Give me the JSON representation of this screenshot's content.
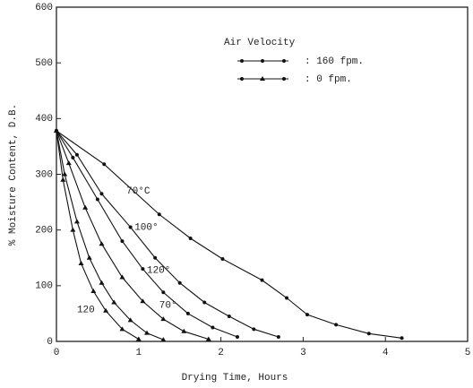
{
  "chart_data": {
    "type": "line",
    "xlabel": "Drying Time, Hours",
    "ylabel": "% Moisture Content, D.B.",
    "xlim": [
      0,
      5
    ],
    "xticks": [
      0,
      1,
      2,
      3,
      4,
      5
    ],
    "ylim": [
      0,
      600
    ],
    "yticks": [
      0,
      100,
      200,
      300,
      400,
      500,
      600
    ],
    "legend": {
      "title": "Air Velocity",
      "position": "upper right",
      "entries": [
        {
          "label": ": 160 fpm.",
          "marker": "circle"
        },
        {
          "label": ":  0 fpm.",
          "marker": "triangle"
        }
      ]
    },
    "series": [
      {
        "label": "70°C",
        "marker": "circle",
        "color": "#111",
        "x": [
          0,
          0.58,
          1.25,
          1.63,
          2.02,
          2.5,
          2.8,
          3.05,
          3.4,
          3.8,
          4.2
        ],
        "values": [
          378,
          318,
          228,
          185,
          148,
          110,
          78,
          48,
          30,
          14,
          6
        ]
      },
      {
        "label": "100°",
        "marker": "circle",
        "color": "#111",
        "x": [
          0,
          0.25,
          0.55,
          0.9,
          1.2,
          1.5,
          1.8,
          2.1,
          2.4,
          2.7
        ],
        "values": [
          378,
          335,
          265,
          205,
          150,
          105,
          70,
          45,
          22,
          8
        ]
      },
      {
        "label": "120°",
        "marker": "circle",
        "color": "#111",
        "x": [
          0,
          0.2,
          0.5,
          0.8,
          1.05,
          1.3,
          1.6,
          1.9,
          2.2
        ],
        "values": [
          378,
          330,
          255,
          180,
          130,
          88,
          50,
          25,
          8
        ]
      },
      {
        "label": "70°",
        "marker": "triangle",
        "color": "#111",
        "x": [
          0,
          0.15,
          0.35,
          0.55,
          0.8,
          1.05,
          1.3,
          1.55,
          1.85
        ],
        "values": [
          378,
          320,
          240,
          175,
          115,
          72,
          40,
          18,
          4
        ]
      },
      {
        "marker": "triangle",
        "color": "#111",
        "x": [
          0,
          0.1,
          0.25,
          0.4,
          0.55,
          0.7,
          0.9,
          1.1,
          1.3
        ],
        "values": [
          378,
          300,
          215,
          150,
          105,
          70,
          38,
          15,
          3
        ]
      },
      {
        "label": "120",
        "marker": "triangle",
        "color": "#111",
        "x": [
          0,
          0.08,
          0.2,
          0.3,
          0.45,
          0.6,
          0.8,
          1.0
        ],
        "values": [
          378,
          290,
          200,
          140,
          90,
          55,
          22,
          4
        ]
      }
    ]
  }
}
